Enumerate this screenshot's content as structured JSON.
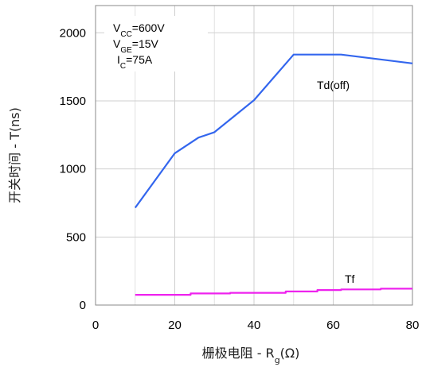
{
  "chart_data": {
    "type": "line",
    "xlabel_main": "栅极电阻 - R",
    "xlabel_sub": "g",
    "xlabel_tail": "(Ω)",
    "ylabel": "开关时间 - T(ns)",
    "xlim": [
      0,
      80
    ],
    "ylim": [
      0,
      2200
    ],
    "xticks": [
      0,
      20,
      40,
      60,
      80
    ],
    "yticks": [
      0,
      500,
      1000,
      1500,
      2000
    ],
    "grid": true,
    "conditions": [
      {
        "main": "V",
        "sub": "CC",
        "tail": "=600V"
      },
      {
        "main": "V",
        "sub": "GE",
        "tail": "=15V"
      },
      {
        "main": "I",
        "sub": "C",
        "tail": "=75A"
      }
    ],
    "series": [
      {
        "name": "Td(off)",
        "color": "#3366ee",
        "points": [
          [
            10,
            715
          ],
          [
            20,
            1115
          ],
          [
            26,
            1230
          ],
          [
            30,
            1270
          ],
          [
            40,
            1505
          ],
          [
            50,
            1840
          ],
          [
            62,
            1840
          ],
          [
            80,
            1775
          ]
        ]
      },
      {
        "name": "Tf",
        "color": "#ee22ee",
        "points": [
          [
            10,
            75
          ],
          [
            24,
            75
          ],
          [
            24,
            85
          ],
          [
            34,
            85
          ],
          [
            34,
            90
          ],
          [
            48,
            90
          ],
          [
            48,
            100
          ],
          [
            56,
            100
          ],
          [
            56,
            110
          ],
          [
            62,
            110
          ],
          [
            62,
            115
          ],
          [
            72,
            115
          ],
          [
            72,
            120
          ],
          [
            80,
            120
          ]
        ]
      }
    ]
  }
}
